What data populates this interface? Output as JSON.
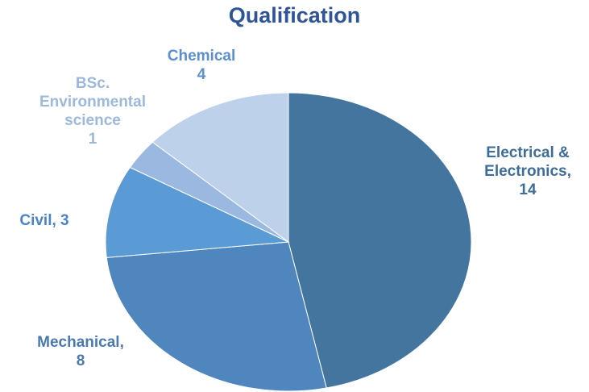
{
  "chart_data": {
    "type": "pie",
    "title": "Qualification",
    "categories": [
      "Electrical & Electronics,",
      "Mechanical,",
      "Civil,",
      "BSc. Environmental science",
      "Chemical"
    ],
    "values": [
      14,
      8,
      3,
      1,
      4
    ],
    "colors": [
      "#44759f",
      "#4f86bd",
      "#5b9bd5",
      "#9bb9e0",
      "#bdd1eb"
    ],
    "label_colors": [
      "#3e6d9a",
      "#4a7ab0",
      "#4a84c8",
      "#9cb8dd",
      "#5b8fd0"
    ]
  }
}
